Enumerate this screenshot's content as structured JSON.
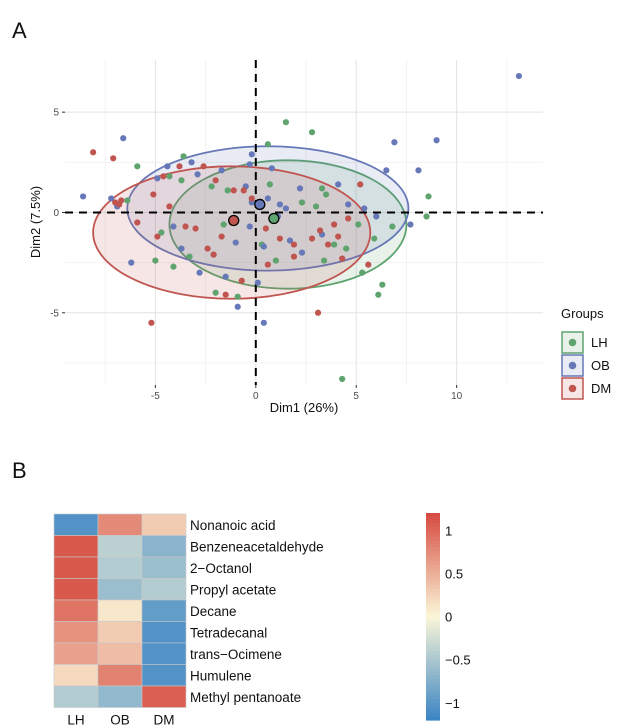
{
  "panels": {
    "a": "A",
    "b": "B"
  },
  "chart_data": [
    {
      "type": "scatter",
      "xlabel": "Dim1 (26%)",
      "ylabel": "Dim2 (7.5%)",
      "xlim": [
        -9.5,
        14.3
      ],
      "ylim": [
        -8.6,
        7.6
      ],
      "xticks": [
        -5,
        0,
        5,
        10
      ],
      "yticks": [
        -5,
        0,
        5
      ],
      "grid": true,
      "reference_lines": {
        "x": 0,
        "y": 0,
        "style": "dashed"
      },
      "legend": {
        "title": "Groups",
        "placement": "right"
      },
      "series": [
        {
          "name": "LH",
          "color": "#5fa36f",
          "centroid": [
            0.9,
            -0.3
          ],
          "ellipse": {
            "center": [
              1.6,
              -0.6
            ],
            "rx": 5.9,
            "ry": 3.2
          },
          "points": [
            [
              1.5,
              4.5
            ],
            [
              2.8,
              4.0
            ],
            [
              -3.6,
              2.8
            ],
            [
              0.6,
              3.4
            ],
            [
              -3.7,
              1.6
            ],
            [
              -5.9,
              2.3
            ],
            [
              -4.3,
              1.8
            ],
            [
              -2.2,
              1.3
            ],
            [
              -1.4,
              1.1
            ],
            [
              0.7,
              1.4
            ],
            [
              3.3,
              1.2
            ],
            [
              3.5,
              0.9
            ],
            [
              2.3,
              0.5
            ],
            [
              3.0,
              0.3
            ],
            [
              5.1,
              -0.6
            ],
            [
              6.8,
              -0.7
            ],
            [
              8.6,
              0.8
            ],
            [
              8.5,
              -0.2
            ],
            [
              5.9,
              -1.3
            ],
            [
              6.3,
              -3.6
            ],
            [
              6.1,
              -4.1
            ],
            [
              4.5,
              -1.8
            ],
            [
              0.3,
              -1.6
            ],
            [
              -2.1,
              -2.1
            ],
            [
              -4.1,
              -2.7
            ],
            [
              -2.0,
              -4.0
            ],
            [
              -0.9,
              -4.2
            ],
            [
              1.0,
              -2.4
            ],
            [
              3.4,
              -2.4
            ],
            [
              3.9,
              -1.6
            ],
            [
              5.3,
              -3.0
            ],
            [
              -4.7,
              -1.0
            ],
            [
              -5.0,
              -2.4
            ],
            [
              -3.3,
              -2.2
            ],
            [
              -1.6,
              -0.6
            ],
            [
              4.3,
              -8.3
            ],
            [
              -6.4,
              0.6
            ]
          ]
        },
        {
          "name": "OB",
          "color": "#6678b7",
          "centroid": [
            0.2,
            0.4
          ],
          "ellipse": {
            "center": [
              0.6,
              0.2
            ],
            "rx": 7.0,
            "ry": 3.1
          },
          "points": [
            [
              13.1,
              6.8
            ],
            [
              9.0,
              3.6
            ],
            [
              6.5,
              2.1
            ],
            [
              8.1,
              2.1
            ],
            [
              6.9,
              3.5
            ],
            [
              -6.6,
              3.7
            ],
            [
              -4.9,
              1.7
            ],
            [
              -4.4,
              2.3
            ],
            [
              -3.2,
              2.5
            ],
            [
              -2.9,
              1.9
            ],
            [
              -1.7,
              2.1
            ],
            [
              -0.3,
              2.4
            ],
            [
              0.8,
              2.2
            ],
            [
              -0.5,
              1.3
            ],
            [
              -0.2,
              0.5
            ],
            [
              0.6,
              0.7
            ],
            [
              1.2,
              0.4
            ],
            [
              1.5,
              0.2
            ],
            [
              2.2,
              1.2
            ],
            [
              4.1,
              1.4
            ],
            [
              4.6,
              0.4
            ],
            [
              5.4,
              0.2
            ],
            [
              6.0,
              -0.2
            ],
            [
              7.7,
              -0.6
            ],
            [
              -7.2,
              0.7
            ],
            [
              -8.6,
              0.8
            ],
            [
              -6.9,
              0.3
            ],
            [
              -6.2,
              -2.5
            ],
            [
              -1.0,
              -1.5
            ],
            [
              -0.3,
              -0.7
            ],
            [
              0.4,
              -1.7
            ],
            [
              1.7,
              -1.4
            ],
            [
              2.3,
              -2.0
            ],
            [
              3.3,
              -1.1
            ],
            [
              0.1,
              -3.5
            ],
            [
              -2.8,
              -3.0
            ],
            [
              -0.9,
              -4.7
            ],
            [
              0.4,
              -5.5
            ],
            [
              -3.7,
              -1.8
            ],
            [
              -4.1,
              -0.7
            ],
            [
              1.1,
              -0.2
            ],
            [
              -1.5,
              -3.2
            ],
            [
              -0.2,
              2.9
            ]
          ]
        },
        {
          "name": "DM",
          "color": "#c05550",
          "centroid": [
            -1.1,
            -0.4
          ],
          "ellipse": {
            "center": [
              -1.2,
              -1.0
            ],
            "rx": 6.9,
            "ry": 3.3
          },
          "points": [
            [
              -8.1,
              3.0
            ],
            [
              -7.1,
              2.7
            ],
            [
              -6.7,
              0.6
            ],
            [
              -6.8,
              0.4
            ],
            [
              -5.9,
              -0.5
            ],
            [
              -4.9,
              -1.2
            ],
            [
              -4.3,
              0.3
            ],
            [
              -4.6,
              1.8
            ],
            [
              -3.8,
              2.3
            ],
            [
              -2.6,
              2.3
            ],
            [
              -2.0,
              1.6
            ],
            [
              -1.1,
              1.1
            ],
            [
              -0.6,
              1.1
            ],
            [
              -0.2,
              0.7
            ],
            [
              -3.0,
              -0.8
            ],
            [
              -2.1,
              -2.1
            ],
            [
              -2.4,
              -1.8
            ],
            [
              -1.7,
              -1.2
            ],
            [
              -1.2,
              -0.5
            ],
            [
              0.5,
              -0.8
            ],
            [
              1.2,
              -1.3
            ],
            [
              1.9,
              -1.6
            ],
            [
              2.8,
              -1.3
            ],
            [
              3.2,
              -0.9
            ],
            [
              3.6,
              -1.6
            ],
            [
              4.3,
              -2.3
            ],
            [
              3.9,
              -0.6
            ],
            [
              4.6,
              -0.3
            ],
            [
              5.2,
              1.4
            ],
            [
              5.6,
              -2.6
            ],
            [
              -5.2,
              -5.5
            ],
            [
              3.1,
              -5.0
            ],
            [
              -1.5,
              -4.1
            ],
            [
              -0.7,
              -3.4
            ],
            [
              0.6,
              -2.6
            ],
            [
              1.9,
              -2.2
            ],
            [
              -3.5,
              -0.7
            ],
            [
              -7.0,
              0.5
            ],
            [
              4.1,
              -1.2
            ],
            [
              -5.1,
              0.9
            ]
          ]
        }
      ]
    },
    {
      "type": "heatmap",
      "columns": [
        "LH",
        "OB",
        "DM"
      ],
      "rows": [
        "Nonanoic acid",
        "Benzeneacetaldehyde",
        "2−Octanol",
        "Propyl acetate",
        "Decane",
        "Tetradecanal",
        "trans−Ocimene",
        "Humulene",
        "Methyl pentanoate"
      ],
      "values": [
        [
          -1.05,
          0.75,
          0.3
        ],
        [
          1.1,
          -0.4,
          -0.7
        ],
        [
          1.1,
          -0.45,
          -0.6
        ],
        [
          1.1,
          -0.6,
          -0.45
        ],
        [
          0.9,
          0.1,
          -0.95
        ],
        [
          0.7,
          0.3,
          -1.05
        ],
        [
          0.6,
          0.4,
          -1.05
        ],
        [
          0.2,
          0.8,
          -1.05
        ],
        [
          -0.45,
          -0.65,
          1.05
        ]
      ],
      "colorbar": {
        "range": [
          -1.2,
          1.2
        ],
        "ticks": [
          "1",
          "0.5",
          "0",
          "−0.5",
          "−1"
        ],
        "tick_values": [
          1,
          0.5,
          0,
          -0.5,
          -1
        ]
      },
      "colors": {
        "low": "#3a84c4",
        "mid": "#fbf7d8",
        "high": "#d6493f"
      }
    }
  ]
}
